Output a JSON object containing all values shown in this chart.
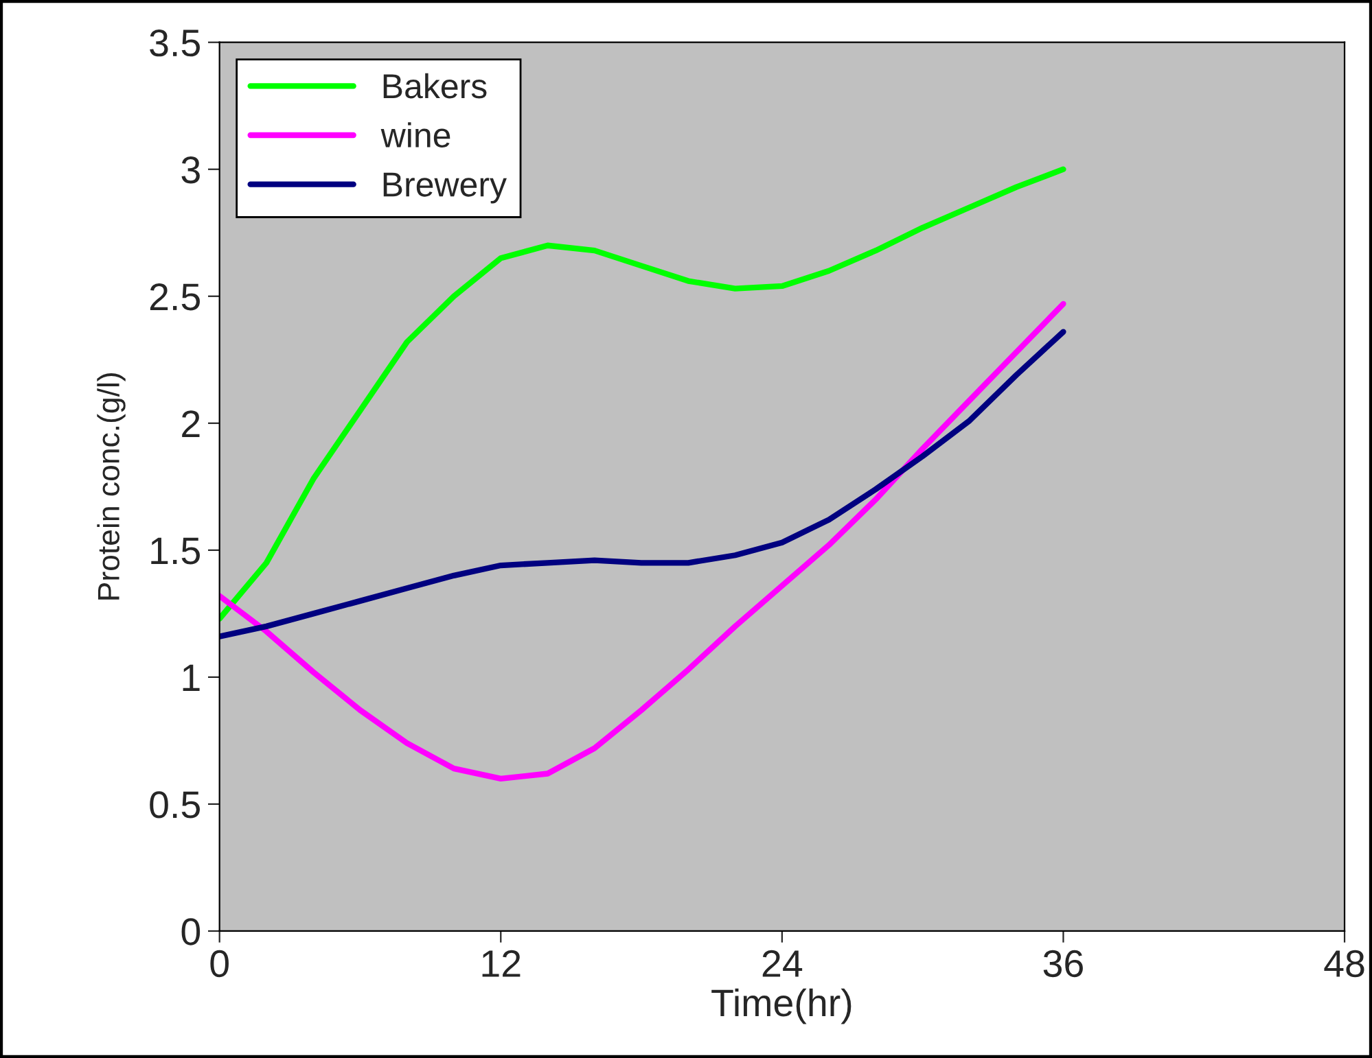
{
  "chart_data": {
    "type": "line",
    "xlabel": "Time(hr)",
    "ylabel": "Protein conc.(g/l)",
    "x": [
      0,
      2,
      4,
      6,
      8,
      10,
      12,
      14,
      16,
      18,
      20,
      22,
      24,
      26,
      28,
      30,
      32,
      34,
      36
    ],
    "series": [
      {
        "name": "Bakers",
        "color": "#00ff00",
        "values": [
          1.23,
          1.45,
          1.78,
          2.05,
          2.32,
          2.5,
          2.65,
          2.7,
          2.68,
          2.62,
          2.56,
          2.53,
          2.54,
          2.6,
          2.68,
          2.77,
          2.85,
          2.93,
          3.0
        ]
      },
      {
        "name": "wine",
        "color": "#ff00ff",
        "values": [
          1.32,
          1.18,
          1.02,
          0.87,
          0.74,
          0.64,
          0.6,
          0.62,
          0.72,
          0.87,
          1.03,
          1.2,
          1.36,
          1.52,
          1.7,
          1.9,
          2.09,
          2.28,
          2.47
        ]
      },
      {
        "name": "Brewery",
        "color": "#000080",
        "values": [
          1.16,
          1.2,
          1.25,
          1.3,
          1.35,
          1.4,
          1.44,
          1.45,
          1.46,
          1.45,
          1.45,
          1.48,
          1.53,
          1.62,
          1.74,
          1.87,
          2.01,
          2.19,
          2.36
        ]
      }
    ],
    "xlim": [
      0,
      48
    ],
    "xticks": [
      0,
      12,
      24,
      36,
      48
    ],
    "ylim": [
      0,
      3.5
    ],
    "yticks": [
      0,
      0.5,
      1,
      1.5,
      2,
      2.5,
      3,
      3.5
    ],
    "grid": false,
    "legend": "top left",
    "line_style": "solid"
  }
}
